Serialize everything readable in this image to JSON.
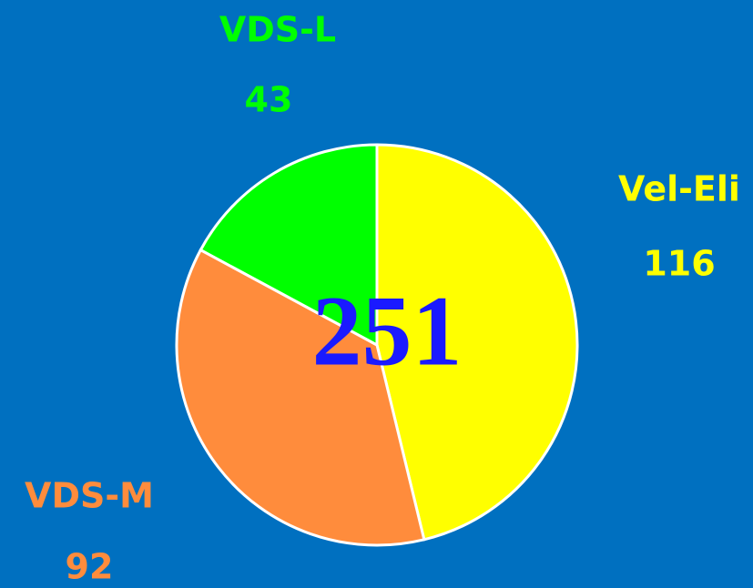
{
  "chart_data": {
    "type": "pie",
    "categories": [
      "Vel-Eli",
      "VDS-M",
      "VDS-L"
    ],
    "values": [
      116,
      92,
      43
    ],
    "colors": [
      "#ffff00",
      "#ff8c3c",
      "#00ff00"
    ],
    "total": 251
  }
}
